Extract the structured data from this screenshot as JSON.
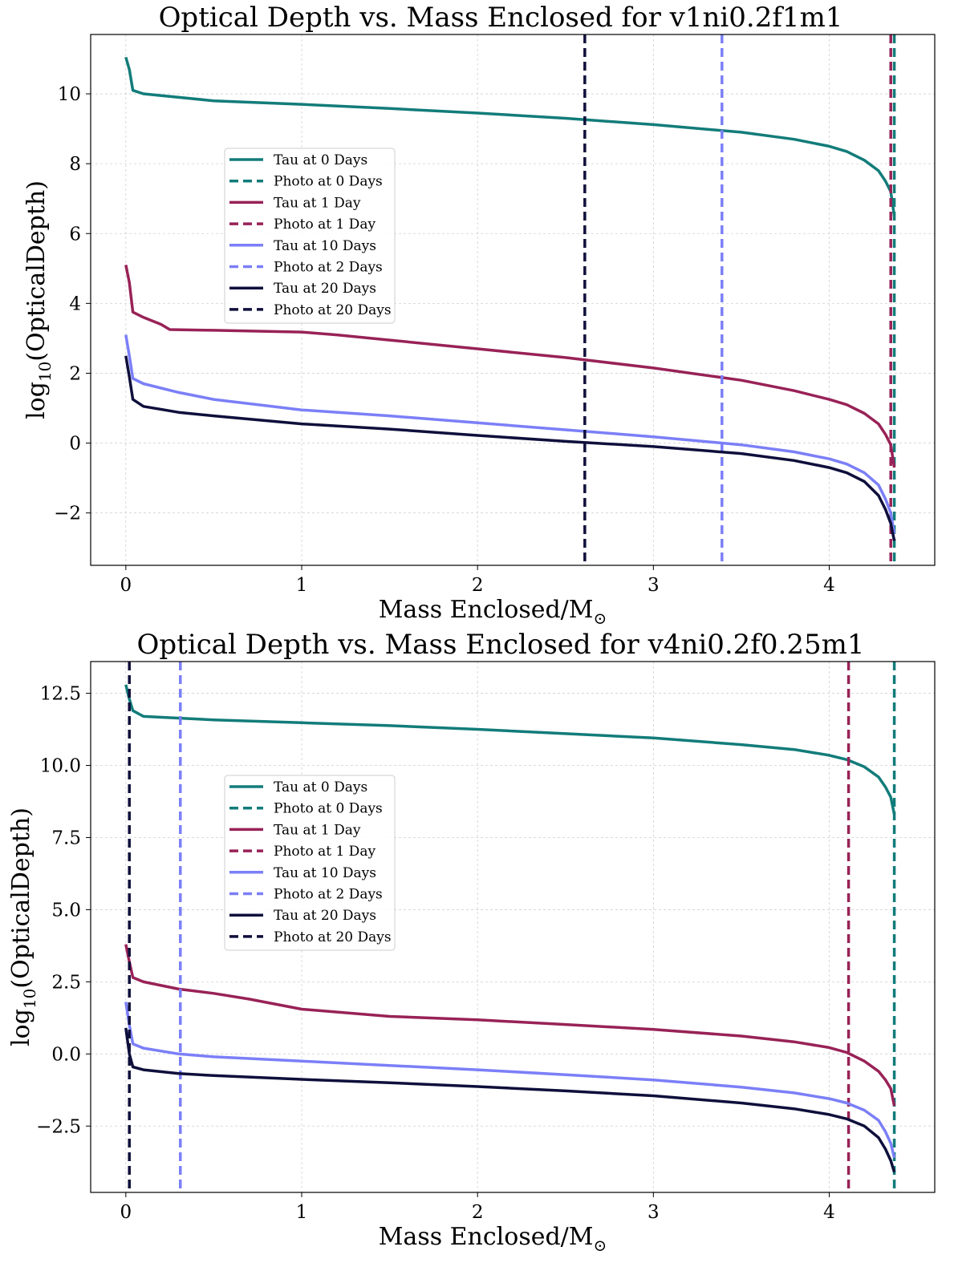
{
  "chart_data": [
    {
      "type": "line",
      "title": "Optical Depth vs. Mass Enclosed for v1ni0.2f1m1",
      "xlabel_main": "Mass Enclosed/M",
      "xlabel_sub": "⊙",
      "ylabel_main": "log",
      "ylabel_sub": "10",
      "ylabel_rest": "(OpticalDepth)",
      "xlim": [
        -0.2,
        4.6
      ],
      "ylim": [
        -3.5,
        11.7
      ],
      "xticks": [
        0,
        1,
        2,
        3,
        4
      ],
      "xtick_labels": [
        "0",
        "1",
        "2",
        "3",
        "4"
      ],
      "yticks": [
        -2,
        0,
        2,
        4,
        6,
        8,
        10
      ],
      "ytick_labels": [
        "−2",
        "0",
        "2",
        "4",
        "6",
        "8",
        "10"
      ],
      "legend_position": "center-left",
      "series": [
        {
          "name": "Tau at 0 Days",
          "color": "#127c7a",
          "style": "solid",
          "x": [
            0,
            0.02,
            0.04,
            0.1,
            0.5,
            1,
            1.5,
            2,
            2.5,
            3,
            3.5,
            3.8,
            4.0,
            4.1,
            4.2,
            4.28,
            4.32,
            4.35,
            4.37
          ],
          "y": [
            11.05,
            10.7,
            10.1,
            10.0,
            9.8,
            9.7,
            9.58,
            9.45,
            9.3,
            9.12,
            8.9,
            8.7,
            8.5,
            8.35,
            8.1,
            7.8,
            7.5,
            7.2,
            6.5
          ]
        },
        {
          "name": "Photo at 0 Days",
          "color": "#127c7a",
          "style": "dashed",
          "x": [
            4.37
          ]
        },
        {
          "name": "Tau at 1 Day",
          "color": "#982257",
          "style": "solid",
          "x": [
            0,
            0.02,
            0.04,
            0.1,
            0.2,
            0.25,
            0.5,
            1,
            1.2,
            1.5,
            2,
            2.5,
            3,
            3.5,
            3.8,
            4.0,
            4.1,
            4.2,
            4.28,
            4.32,
            4.35,
            4.37
          ],
          "y": [
            5.1,
            4.6,
            3.75,
            3.6,
            3.4,
            3.25,
            3.23,
            3.18,
            3.1,
            2.95,
            2.7,
            2.45,
            2.15,
            1.8,
            1.5,
            1.25,
            1.1,
            0.85,
            0.55,
            0.25,
            -0.05,
            -0.7
          ]
        },
        {
          "name": "Photo at 1 Day",
          "color": "#982257",
          "style": "dashed",
          "x": [
            4.35
          ]
        },
        {
          "name": "Tau at 10 Days",
          "color": "#7b7ff7",
          "style": "solid",
          "x": [
            0,
            0.02,
            0.04,
            0.1,
            0.3,
            0.5,
            1,
            1.5,
            2,
            2.5,
            3,
            3.5,
            3.8,
            4.0,
            4.1,
            4.2,
            4.28,
            4.32,
            4.35,
            4.37
          ],
          "y": [
            3.1,
            2.5,
            1.85,
            1.7,
            1.45,
            1.25,
            0.95,
            0.78,
            0.58,
            0.38,
            0.18,
            -0.05,
            -0.25,
            -0.45,
            -0.6,
            -0.85,
            -1.2,
            -1.6,
            -2.0,
            -2.6
          ]
        },
        {
          "name": "Photo at 2 Days",
          "color": "#7b7ff7",
          "style": "dashed",
          "x": [
            3.39
          ]
        },
        {
          "name": "Tau at 20 Days",
          "color": "#0f0f3c",
          "style": "solid",
          "x": [
            0,
            0.02,
            0.04,
            0.1,
            0.3,
            0.5,
            1,
            1.5,
            2,
            2.5,
            3,
            3.5,
            3.8,
            4.0,
            4.1,
            4.2,
            4.28,
            4.32,
            4.35,
            4.37
          ],
          "y": [
            2.5,
            1.9,
            1.25,
            1.05,
            0.88,
            0.78,
            0.55,
            0.4,
            0.22,
            0.05,
            -0.1,
            -0.3,
            -0.5,
            -0.7,
            -0.85,
            -1.1,
            -1.5,
            -1.9,
            -2.3,
            -2.8
          ]
        },
        {
          "name": "Photo at 20 Days",
          "color": "#0f0f3c",
          "style": "dashed",
          "x": [
            2.61
          ]
        }
      ]
    },
    {
      "type": "line",
      "title": "Optical Depth vs. Mass Enclosed for v4ni0.2f0.25m1",
      "xlabel_main": "Mass Enclosed/M",
      "xlabel_sub": "⊙",
      "ylabel_main": "log",
      "ylabel_sub": "10",
      "ylabel_rest": "(OpticalDepth)",
      "xlim": [
        -0.2,
        4.6
      ],
      "ylim": [
        -4.8,
        13.6
      ],
      "xticks": [
        0,
        1,
        2,
        3,
        4
      ],
      "xtick_labels": [
        "0",
        "1",
        "2",
        "3",
        "4"
      ],
      "yticks": [
        -2.5,
        0,
        2.5,
        5,
        7.5,
        10,
        12.5
      ],
      "ytick_labels": [
        "−2.5",
        "0.0",
        "2.5",
        "5.0",
        "7.5",
        "10.0",
        "12.5"
      ],
      "legend_position": "center-left",
      "series": [
        {
          "name": "Tau at 0 Days",
          "color": "#127c7a",
          "style": "solid",
          "x": [
            0,
            0.02,
            0.04,
            0.1,
            0.5,
            1,
            1.5,
            2,
            2.5,
            3,
            3.5,
            3.8,
            4.0,
            4.1,
            4.2,
            4.28,
            4.32,
            4.35,
            4.37
          ],
          "y": [
            12.8,
            12.3,
            11.9,
            11.7,
            11.58,
            11.48,
            11.38,
            11.25,
            11.1,
            10.95,
            10.72,
            10.55,
            10.35,
            10.2,
            9.95,
            9.6,
            9.25,
            8.9,
            8.3
          ]
        },
        {
          "name": "Photo at 0 Days",
          "color": "#127c7a",
          "style": "dashed",
          "x": [
            4.37
          ]
        },
        {
          "name": "Tau at 1 Day",
          "color": "#982257",
          "style": "solid",
          "x": [
            0,
            0.02,
            0.04,
            0.1,
            0.3,
            0.5,
            0.7,
            1,
            1.5,
            2,
            2.5,
            3,
            3.5,
            3.8,
            4.0,
            4.1,
            4.2,
            4.28,
            4.32,
            4.35,
            4.37
          ],
          "y": [
            3.8,
            3.2,
            2.65,
            2.5,
            2.25,
            2.1,
            1.9,
            1.55,
            1.3,
            1.18,
            1.02,
            0.85,
            0.62,
            0.42,
            0.22,
            0.05,
            -0.25,
            -0.6,
            -0.9,
            -1.2,
            -1.8
          ]
        },
        {
          "name": "Photo at 1 Day",
          "color": "#982257",
          "style": "dashed",
          "x": [
            4.11
          ]
        },
        {
          "name": "Tau at 10 Days",
          "color": "#7b7ff7",
          "style": "solid",
          "x": [
            0,
            0.02,
            0.04,
            0.1,
            0.3,
            0.5,
            1,
            1.5,
            2,
            2.5,
            3,
            3.5,
            3.8,
            4.0,
            4.1,
            4.2,
            4.28,
            4.32,
            4.35,
            4.37
          ],
          "y": [
            1.8,
            1.0,
            0.35,
            0.2,
            0.0,
            -0.1,
            -0.25,
            -0.4,
            -0.55,
            -0.72,
            -0.9,
            -1.15,
            -1.35,
            -1.55,
            -1.7,
            -1.95,
            -2.3,
            -2.7,
            -3.1,
            -3.6
          ]
        },
        {
          "name": "Photo at 2 Days",
          "color": "#7b7ff7",
          "style": "dashed",
          "x": [
            0.31
          ]
        },
        {
          "name": "Tau at 20 Days",
          "color": "#0f0f3c",
          "style": "solid",
          "x": [
            0,
            0.02,
            0.04,
            0.1,
            0.3,
            0.5,
            1,
            1.5,
            2,
            2.5,
            3,
            3.5,
            3.8,
            4.0,
            4.1,
            4.2,
            4.28,
            4.32,
            4.35,
            4.37
          ],
          "y": [
            0.9,
            0.0,
            -0.45,
            -0.55,
            -0.68,
            -0.75,
            -0.88,
            -1.0,
            -1.13,
            -1.28,
            -1.45,
            -1.7,
            -1.9,
            -2.1,
            -2.25,
            -2.5,
            -2.9,
            -3.3,
            -3.7,
            -4.1
          ]
        },
        {
          "name": "Photo at 20 Days",
          "color": "#0f0f3c",
          "style": "dashed",
          "x": [
            0.02
          ]
        }
      ]
    }
  ]
}
